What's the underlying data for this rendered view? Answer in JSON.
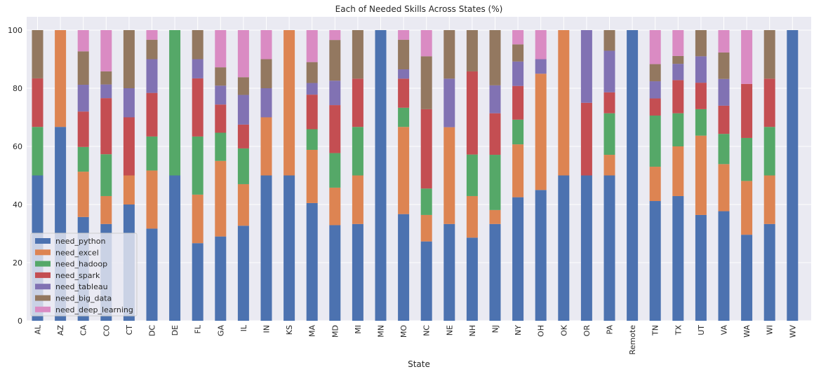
{
  "chart_data": {
    "type": "bar",
    "stacked": true,
    "title": "Each of Needed Skills Across States (%)",
    "xlabel": "State",
    "ylabel": "",
    "ylim": [
      0,
      100
    ],
    "yticks": [
      0,
      20,
      40,
      60,
      80,
      100
    ],
    "grid": true,
    "legend_position": "lower-left",
    "categories": [
      "AL",
      "AZ",
      "CA",
      "CO",
      "CT",
      "DC",
      "DE",
      "FL",
      "GA",
      "IL",
      "IN",
      "KS",
      "MA",
      "MD",
      "MI",
      "MN",
      "MO",
      "NC",
      "NE",
      "NH",
      "NJ",
      "NY",
      "OH",
      "OK",
      "OR",
      "PA",
      "Remote",
      "TN",
      "TX",
      "UT",
      "VA",
      "WA",
      "WI",
      "WV"
    ],
    "series": [
      {
        "name": "need_python",
        "color": "#4c72b0",
        "values": [
          50.0,
          66.7,
          35.7,
          33.3,
          40.0,
          31.7,
          50.0,
          26.7,
          29.0,
          32.7,
          50.0,
          50.0,
          40.5,
          32.9,
          33.3,
          100.0,
          36.7,
          27.3,
          33.3,
          28.6,
          33.3,
          42.5,
          45.0,
          50.0,
          50.0,
          50.0,
          100.0,
          41.2,
          42.9,
          36.4,
          37.7,
          29.6,
          33.3,
          100.0
        ]
      },
      {
        "name": "need_excel",
        "color": "#dd8452",
        "values": [
          0.0,
          33.3,
          15.6,
          9.6,
          10.0,
          20.0,
          0.0,
          16.7,
          26.0,
          14.3,
          20.0,
          50.0,
          18.3,
          12.9,
          16.7,
          0.0,
          30.0,
          9.1,
          33.3,
          14.3,
          4.8,
          18.2,
          40.0,
          50.0,
          0.0,
          7.1,
          0.0,
          11.8,
          17.1,
          27.3,
          16.2,
          18.5,
          16.7,
          0.0
        ]
      },
      {
        "name": "need_hadoop",
        "color": "#55a868",
        "values": [
          16.7,
          0.0,
          8.5,
          14.4,
          0.0,
          11.7,
          50.0,
          20.0,
          9.7,
          12.3,
          0.0,
          0.0,
          7.1,
          11.9,
          16.7,
          0.0,
          6.6,
          9.1,
          0.0,
          14.3,
          19.0,
          8.5,
          0.0,
          0.0,
          0.0,
          14.3,
          0.0,
          17.6,
          11.4,
          9.1,
          10.4,
          14.8,
          16.7,
          0.0
        ]
      },
      {
        "name": "need_spark",
        "color": "#c44e52",
        "values": [
          16.7,
          0.0,
          12.2,
          19.3,
          20.0,
          15.0,
          0.0,
          20.0,
          9.7,
          8.2,
          0.0,
          0.0,
          11.9,
          16.5,
          16.6,
          0.0,
          10.0,
          27.3,
          0.0,
          28.6,
          14.3,
          11.6,
          0.0,
          0.0,
          25.0,
          7.2,
          0.0,
          5.9,
          11.4,
          9.1,
          9.7,
          18.6,
          16.6,
          0.0
        ]
      },
      {
        "name": "need_tableau",
        "color": "#8172b3",
        "values": [
          0.0,
          0.0,
          9.2,
          4.7,
          10.0,
          11.6,
          0.0,
          6.6,
          6.5,
          10.2,
          10.0,
          0.0,
          4.0,
          8.4,
          0.0,
          0.0,
          3.2,
          0.0,
          16.7,
          0.0,
          9.6,
          8.4,
          5.0,
          0.0,
          25.0,
          14.3,
          0.0,
          5.9,
          5.6,
          9.1,
          9.2,
          0.0,
          0.0,
          0.0
        ]
      },
      {
        "name": "need_big_data",
        "color": "#937860",
        "values": [
          16.6,
          0.0,
          11.5,
          4.5,
          20.0,
          6.7,
          0.0,
          10.0,
          6.3,
          6.1,
          10.0,
          0.0,
          7.2,
          14.0,
          16.7,
          0.0,
          10.2,
          18.2,
          16.7,
          14.2,
          19.0,
          5.9,
          0.0,
          0.0,
          0.0,
          7.1,
          0.0,
          5.9,
          2.7,
          9.0,
          9.1,
          0.0,
          16.7,
          0.0
        ]
      },
      {
        "name": "need_deep_learning",
        "color": "#da8bc3",
        "values": [
          0.0,
          0.0,
          7.3,
          14.2,
          0.0,
          3.3,
          0.0,
          0.0,
          12.8,
          16.2,
          10.0,
          0.0,
          11.0,
          3.4,
          0.0,
          0.0,
          3.3,
          9.0,
          0.0,
          0.0,
          0.0,
          4.9,
          10.0,
          0.0,
          0.0,
          0.0,
          0.0,
          11.7,
          8.9,
          0.0,
          7.7,
          18.5,
          0.0,
          0.0
        ]
      }
    ]
  }
}
